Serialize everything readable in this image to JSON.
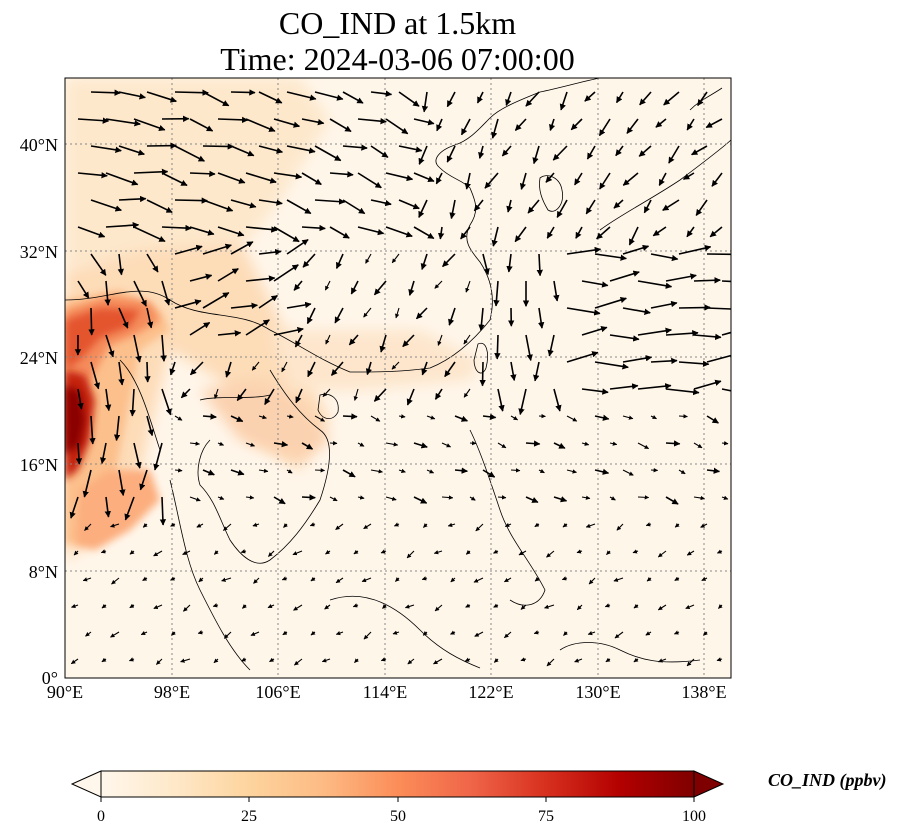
{
  "title": {
    "line1": "CO_IND at 1.5km",
    "line2": "Time: 2024-03-06 07:00:00"
  },
  "map": {
    "projection": "PlateCarree",
    "lon_range": [
      90,
      140
    ],
    "lat_range": [
      0,
      45
    ],
    "gridlines": "dotted",
    "x_ticks": [
      "90°E",
      "98°E",
      "106°E",
      "114°E",
      "122°E",
      "130°E",
      "138°E"
    ],
    "y_ticks": [
      "0°",
      "8°N",
      "16°N",
      "24°N",
      "32°N",
      "40°N"
    ],
    "field": "CO_IND concentration (filled contours)",
    "overlay": "wind vectors (arrows)"
  },
  "colorbar": {
    "label": "CO_IND (ppbv)",
    "min": 0,
    "max": 100,
    "ticks": [
      "0",
      "25",
      "50",
      "75",
      "100"
    ],
    "extend": "both",
    "colormap": "OrRd",
    "colors": [
      "#fff7ec",
      "#fee8c8",
      "#fdd49e",
      "#fdbb84",
      "#fc8d59",
      "#ef6548",
      "#d7301f",
      "#b30000",
      "#7f0000"
    ]
  }
}
